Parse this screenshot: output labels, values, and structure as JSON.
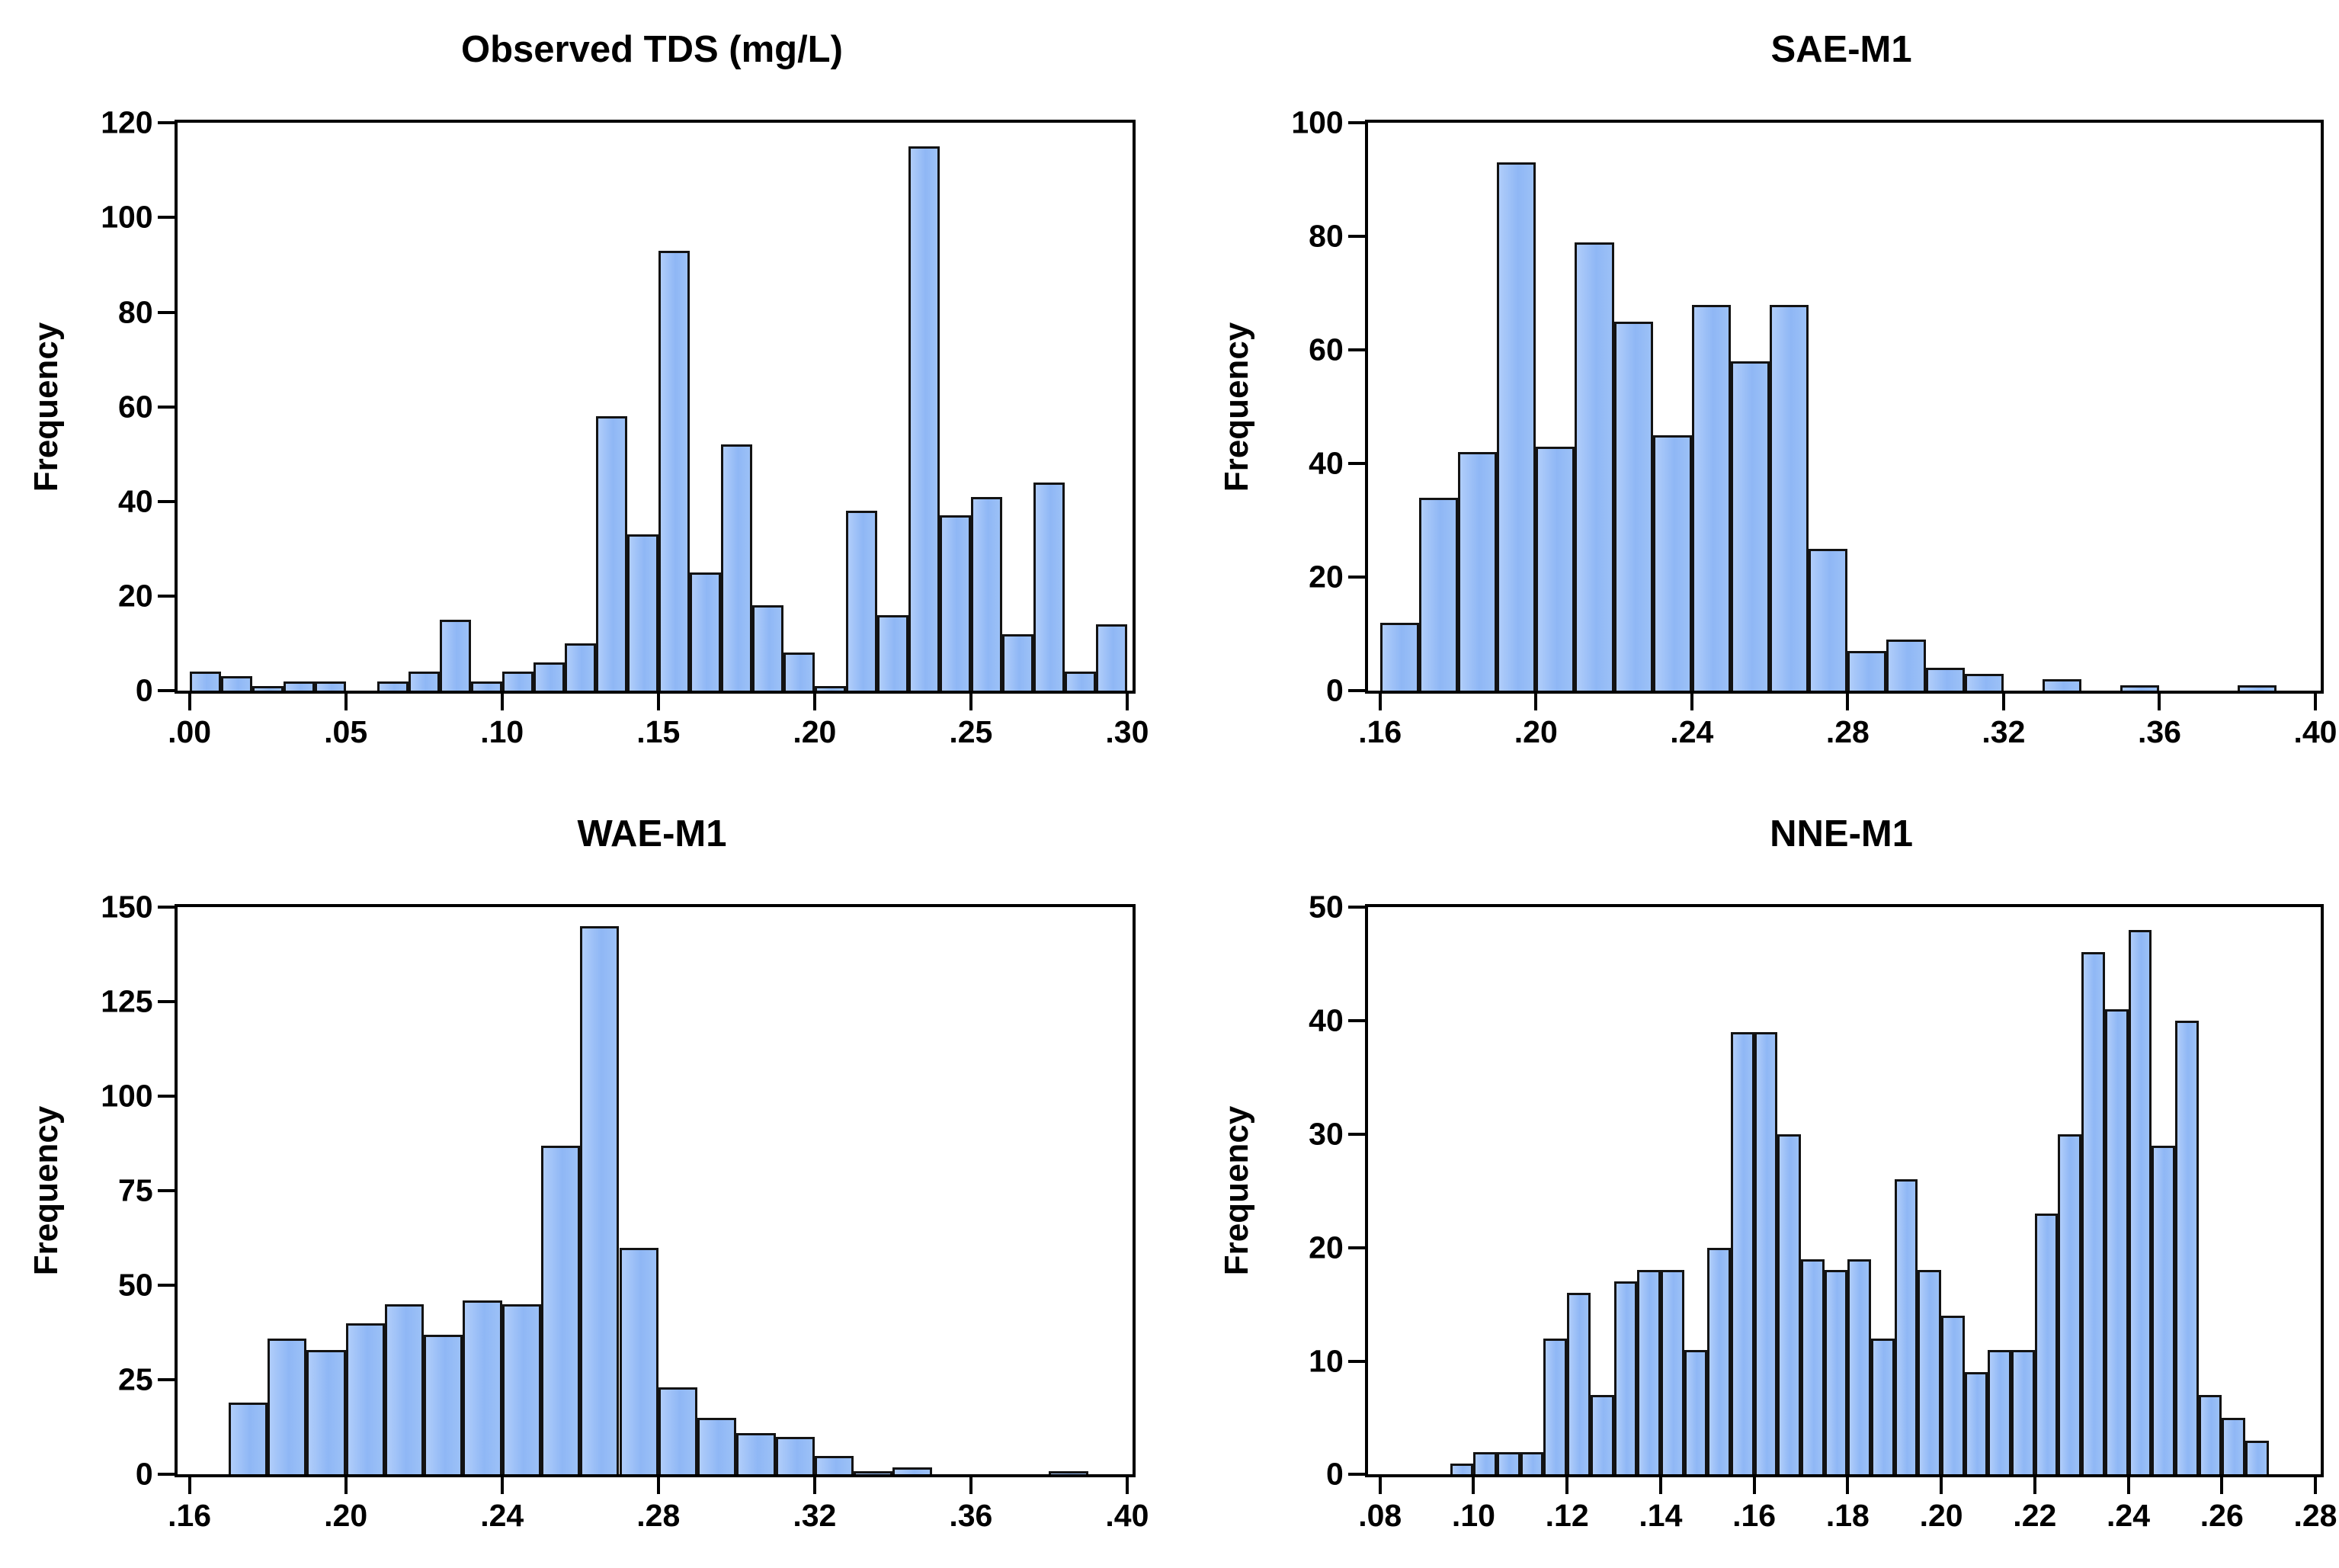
{
  "figure": {
    "layout": "2x2-histogram-grid",
    "background": "#ffffff",
    "axis_color": "#000000",
    "bar_fill": "#9cc1f7",
    "bar_fill_highlight": "#b0cdfa",
    "bar_edge": "#131313"
  },
  "chart_data": [
    {
      "type": "bar",
      "subtype": "histogram",
      "title": "Observed TDS (mg/L)",
      "ylabel": "Frequency",
      "ylim": [
        0,
        120
      ],
      "yticks": [
        0,
        20,
        40,
        60,
        80,
        100,
        120
      ],
      "xlim": [
        0.0,
        0.3
      ],
      "xtick_labels": [
        ".00",
        ".05",
        ".10",
        ".15",
        ".20",
        ".25",
        ".30"
      ],
      "xtick_values": [
        0.0,
        0.05,
        0.1,
        0.15,
        0.2,
        0.25,
        0.3
      ],
      "bin_start": 0.0,
      "bin_width": 0.01,
      "values": [
        4,
        3,
        1,
        2,
        2,
        0,
        2,
        4,
        15,
        2,
        4,
        6,
        10,
        58,
        33,
        93,
        25,
        52,
        18,
        8,
        1,
        38,
        16,
        115,
        37,
        41,
        12,
        44,
        4,
        14
      ],
      "grid": false,
      "legend": "none"
    },
    {
      "type": "bar",
      "subtype": "histogram",
      "title": "SAE-M1",
      "ylabel": "Frequency",
      "ylim": [
        0,
        100
      ],
      "yticks": [
        0,
        20,
        40,
        60,
        80,
        100
      ],
      "xlim": [
        0.16,
        0.4
      ],
      "xtick_labels": [
        ".16",
        ".20",
        ".24",
        ".28",
        ".32",
        ".36",
        ".40"
      ],
      "xtick_values": [
        0.16,
        0.2,
        0.24,
        0.28,
        0.32,
        0.36,
        0.4
      ],
      "bin_start": 0.16,
      "bin_width": 0.01,
      "values": [
        12,
        34,
        42,
        93,
        43,
        79,
        65,
        45,
        68,
        58,
        68,
        25,
        7,
        9,
        4,
        3,
        0,
        2,
        0,
        1,
        0,
        0,
        1,
        0
      ],
      "grid": false,
      "legend": "none"
    },
    {
      "type": "bar",
      "subtype": "histogram",
      "title": "WAE-M1",
      "ylabel": "Frequency",
      "ylim": [
        0,
        150
      ],
      "yticks": [
        0,
        25,
        50,
        75,
        100,
        125,
        150
      ],
      "xlim": [
        0.16,
        0.4
      ],
      "xtick_labels": [
        ".16",
        ".20",
        ".24",
        ".28",
        ".32",
        ".36",
        ".40"
      ],
      "xtick_values": [
        0.16,
        0.2,
        0.24,
        0.28,
        0.32,
        0.36,
        0.4
      ],
      "bin_start": 0.17,
      "bin_width": 0.01,
      "values": [
        19,
        36,
        33,
        40,
        45,
        37,
        46,
        45,
        87,
        145,
        60,
        23,
        15,
        11,
        10,
        5,
        1,
        2,
        0,
        0,
        0,
        1
      ],
      "grid": false,
      "legend": "none"
    },
    {
      "type": "bar",
      "subtype": "histogram",
      "title": "NNE-M1",
      "ylabel": "Frequency",
      "ylim": [
        0,
        50
      ],
      "yticks": [
        0,
        10,
        20,
        30,
        40,
        50
      ],
      "xlim": [
        0.08,
        0.28
      ],
      "xtick_labels": [
        ".08",
        ".10",
        ".12",
        ".14",
        ".16",
        ".18",
        ".20",
        ".22",
        ".24",
        ".26",
        ".28"
      ],
      "xtick_values": [
        0.08,
        0.1,
        0.12,
        0.14,
        0.16,
        0.18,
        0.2,
        0.22,
        0.24,
        0.26,
        0.28
      ],
      "bin_start": 0.095,
      "bin_width": 0.005,
      "values": [
        1,
        2,
        2,
        2,
        12,
        16,
        7,
        17,
        18,
        18,
        11,
        20,
        39,
        39,
        30,
        19,
        18,
        19,
        12,
        26,
        18,
        14,
        9,
        11,
        11,
        23,
        30,
        46,
        41,
        48,
        29,
        40,
        7,
        5,
        3
      ],
      "grid": false,
      "legend": "none"
    }
  ]
}
